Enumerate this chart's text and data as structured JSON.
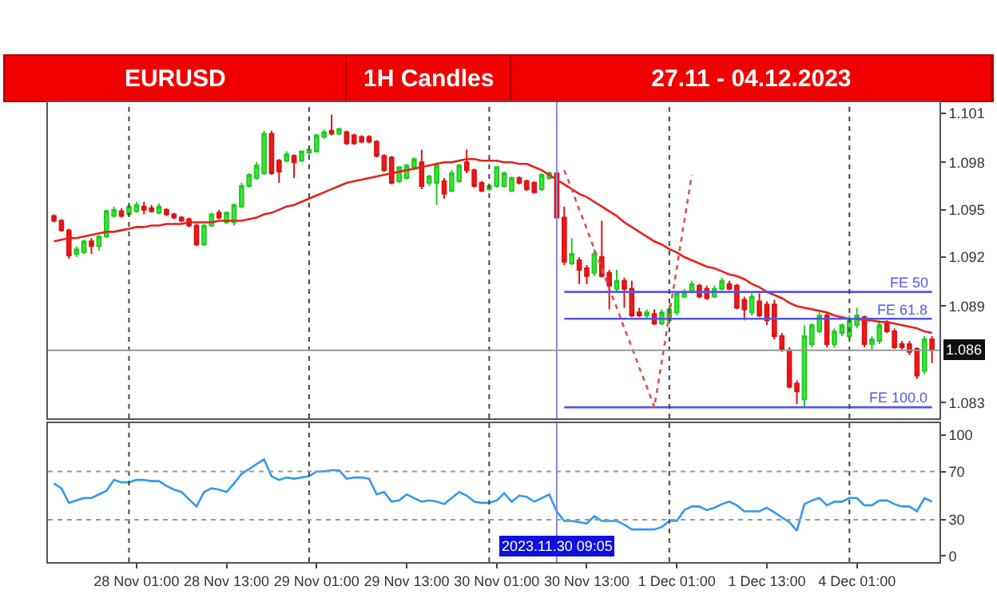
{
  "chart_data": [
    {
      "type": "candlestick",
      "title": "EURUSD",
      "subtitle": "1H Candles",
      "annotations": [
        "27.11 - 04.12.2023"
      ],
      "tick_labels": "y",
      "grid": "x",
      "categories": [
        null,
        null,
        null,
        null,
        null,
        null,
        null,
        null,
        null,
        null,
        null,
        null,
        null,
        null,
        null,
        null,
        null,
        null,
        null,
        null,
        null,
        null,
        null,
        null,
        null,
        null,
        null,
        null,
        null,
        null,
        null,
        null,
        null,
        null,
        null,
        null,
        null,
        null,
        null,
        null,
        null,
        null,
        null,
        null,
        null,
        null,
        null,
        null,
        null,
        null,
        null,
        null,
        null,
        null,
        null,
        null,
        null,
        null,
        null,
        null,
        null,
        null,
        null,
        null,
        null,
        null,
        null,
        null,
        null,
        null,
        null,
        null,
        null,
        null,
        null,
        null,
        null,
        null,
        null,
        null,
        null,
        null,
        null,
        null,
        null,
        null,
        null,
        null,
        null,
        null,
        null,
        null,
        null,
        null,
        null,
        null,
        null,
        null,
        null,
        null,
        null,
        null,
        null,
        null,
        null,
        null,
        null,
        null,
        null,
        null,
        null,
        null,
        null,
        null,
        null,
        null,
        null,
        null
      ],
      "ohlc": [
        [
          1.0946,
          1.0947,
          1.0942,
          1.0943
        ],
        [
          1.0943,
          1.0944,
          1.0936,
          1.0937
        ],
        [
          1.0937,
          1.0938,
          1.0919,
          1.0921
        ],
        [
          1.0922,
          1.0927,
          1.092,
          1.0925
        ],
        [
          1.0923,
          1.0931,
          1.0922,
          1.093
        ],
        [
          1.093,
          1.0932,
          1.0922,
          1.0927
        ],
        [
          1.0927,
          1.0934,
          1.0924,
          1.0933
        ],
        [
          1.0933,
          1.095,
          1.0932,
          1.0949
        ],
        [
          1.0946,
          1.0952,
          1.0945,
          1.095
        ],
        [
          1.0949,
          1.0951,
          1.0945,
          1.0946
        ],
        [
          1.0947,
          1.0953,
          1.0946,
          1.0952
        ],
        [
          1.0949,
          1.0955,
          1.0948,
          1.0953
        ],
        [
          1.0952,
          1.0955,
          1.0947,
          1.095
        ],
        [
          1.0951,
          1.0953,
          1.0948,
          1.0949
        ],
        [
          1.0948,
          1.0954,
          1.0947,
          1.0952
        ],
        [
          1.095,
          1.0951,
          1.0946,
          1.0947
        ],
        [
          1.0947,
          1.0948,
          1.0944,
          1.0945
        ],
        [
          1.0945,
          1.0946,
          1.0942,
          1.0943
        ],
        [
          1.0944,
          1.0945,
          1.0939,
          1.094
        ],
        [
          1.094,
          1.0941,
          1.0927,
          1.0928
        ],
        [
          1.0928,
          1.0941,
          1.0927,
          1.094
        ],
        [
          1.094,
          1.0948,
          1.0939,
          1.0947
        ],
        [
          1.0948,
          1.095,
          1.0944,
          1.0945
        ],
        [
          1.0942,
          1.0949,
          1.0941,
          1.0948
        ],
        [
          1.0942,
          1.0954,
          1.094,
          1.0953
        ],
        [
          1.0952,
          1.0967,
          1.0951,
          1.0965
        ],
        [
          1.0965,
          1.0973,
          1.0964,
          1.0972
        ],
        [
          1.097,
          1.098,
          1.0969,
          1.0978
        ],
        [
          1.0973,
          1.1,
          1.0972,
          1.0998
        ],
        [
          1.0998,
          1.1,
          1.0972,
          1.0973
        ],
        [
          1.0981,
          1.0982,
          1.0967,
          1.0974
        ],
        [
          1.0981,
          1.0987,
          1.098,
          1.0985
        ],
        [
          1.0984,
          1.0985,
          1.097,
          1.098
        ],
        [
          1.0981,
          1.0987,
          1.098,
          1.0987
        ],
        [
          1.0986,
          1.0989,
          1.0985,
          1.0988
        ],
        [
          1.0987,
          1.0998,
          1.0986,
          1.0997
        ],
        [
          1.0996,
          1.1001,
          1.0995,
          1.0999
        ],
        [
          1.1,
          1.101,
          1.0997,
          1.0998
        ],
        [
          1.0998,
          1.1002,
          1.0997,
          1.1001
        ],
        [
          1.0999,
          1.1,
          1.0991,
          1.0992
        ],
        [
          1.0997,
          1.0998,
          1.0991,
          1.0992
        ],
        [
          1.0996,
          1.0997,
          1.0992,
          1.0993
        ],
        [
          1.0996,
          1.0997,
          1.0992,
          1.0993
        ],
        [
          1.0993,
          1.0994,
          1.0983,
          1.0984
        ],
        [
          1.0984,
          1.0985,
          1.0974,
          1.0975
        ],
        [
          1.0983,
          1.0984,
          1.0966,
          1.0967
        ],
        [
          1.0968,
          1.0977,
          1.0967,
          1.0977
        ],
        [
          1.097,
          1.0979,
          1.0969,
          1.0978
        ],
        [
          1.0977,
          1.0983,
          1.0975,
          1.0982
        ],
        [
          1.098,
          1.0988,
          1.0963,
          1.0965
        ],
        [
          1.0967,
          1.0972,
          1.0965,
          1.0971
        ],
        [
          1.0967,
          1.098,
          1.0953,
          1.0978
        ],
        [
          1.0968,
          1.097,
          1.0957,
          1.096
        ],
        [
          1.0962,
          1.0975,
          1.0961,
          1.0973
        ],
        [
          1.0968,
          1.0979,
          1.0967,
          1.0978
        ],
        [
          1.098,
          1.0988,
          1.0973,
          1.0975
        ],
        [
          1.0975,
          1.0976,
          1.0964,
          1.0965
        ],
        [
          1.0967,
          1.0968,
          1.0961,
          1.0962
        ],
        [
          1.0963,
          1.0966,
          1.0962,
          1.0965
        ],
        [
          1.0965,
          1.0977,
          1.0964,
          1.0977
        ],
        [
          1.0965,
          1.0974,
          1.0964,
          1.0973
        ],
        [
          1.0962,
          1.0971,
          1.0961,
          1.097
        ],
        [
          1.097,
          1.0971,
          1.0966,
          1.0967
        ],
        [
          1.0968,
          1.0969,
          1.0962,
          1.0963
        ],
        [
          1.0967,
          1.0968,
          1.096,
          1.0961
        ],
        [
          1.0963,
          1.0973,
          1.0962,
          1.0972
        ],
        [
          1.097,
          1.0974,
          1.0969,
          1.0973
        ],
        [
          1.0973,
          1.0974,
          1.0944,
          1.0945
        ],
        [
          1.0945,
          1.0952,
          1.0915,
          1.0917
        ],
        [
          1.0916,
          1.0932,
          1.0915,
          1.0922
        ],
        [
          1.0918,
          1.092,
          1.0903,
          1.0912
        ],
        [
          1.0913,
          1.0915,
          1.0903,
          1.0908
        ],
        [
          1.091,
          1.0925,
          1.0908,
          1.0922
        ],
        [
          1.092,
          1.0943,
          1.0907,
          1.0908
        ],
        [
          1.091,
          1.0912,
          1.0887,
          1.0902
        ],
        [
          1.09,
          1.0912,
          1.0898,
          1.0905
        ],
        [
          1.0905,
          1.0907,
          1.0888,
          1.09
        ],
        [
          1.09,
          1.0905,
          1.0882,
          1.0883
        ],
        [
          1.0885,
          1.0888,
          1.0882,
          1.0883
        ],
        [
          1.0883,
          1.0887,
          1.0881,
          1.0885
        ],
        [
          1.0884,
          1.0887,
          1.0877,
          1.0878
        ],
        [
          1.0878,
          1.0887,
          1.0877,
          1.0885
        ],
        [
          1.088,
          1.089,
          1.0878,
          1.0887
        ],
        [
          1.0885,
          1.0898,
          1.0883,
          1.0897
        ],
        [
          1.0895,
          1.09,
          1.0894,
          1.0898
        ],
        [
          1.0898,
          1.0905,
          1.0897,
          1.0903
        ],
        [
          1.0902,
          1.0903,
          1.0894,
          1.0895
        ],
        [
          1.09,
          1.0902,
          1.0893,
          1.0894
        ],
        [
          1.0895,
          1.0902,
          1.0894,
          1.09
        ],
        [
          1.09,
          1.0907,
          1.0899,
          1.0905
        ],
        [
          1.0903,
          1.0905,
          1.0899,
          1.09
        ],
        [
          1.0902,
          1.0903,
          1.0887,
          1.0888
        ],
        [
          1.0893,
          1.0895,
          1.088,
          1.0887
        ],
        [
          1.0885,
          1.0897,
          1.0883,
          1.0895
        ],
        [
          1.0892,
          1.0897,
          1.0882,
          1.0883
        ],
        [
          1.089,
          1.0892,
          1.0877,
          1.088
        ],
        [
          1.089,
          1.0893,
          1.0868,
          1.087
        ],
        [
          1.087,
          1.0872,
          1.086,
          1.0862
        ],
        [
          1.0861,
          1.0863,
          1.0837,
          1.0838
        ],
        [
          1.084,
          1.0842,
          1.0827,
          1.0835
        ],
        [
          1.083,
          1.0877,
          1.0825,
          1.087
        ],
        [
          1.0865,
          1.0878,
          1.0863,
          1.0877
        ],
        [
          1.0873,
          1.0885,
          1.0872,
          1.0883
        ],
        [
          1.0883,
          1.0885,
          1.0863,
          1.0865
        ],
        [
          1.0865,
          1.0875,
          1.0863,
          1.0873
        ],
        [
          1.0872,
          1.0878,
          1.087,
          1.0877
        ],
        [
          1.087,
          1.0883,
          1.0868,
          1.088
        ],
        [
          1.0877,
          1.0888,
          1.0875,
          1.0883
        ],
        [
          1.0882,
          1.0883,
          1.0863,
          1.0865
        ],
        [
          1.0865,
          1.087,
          1.0861,
          1.0868
        ],
        [
          1.0867,
          1.088,
          1.0865,
          1.0877
        ],
        [
          1.0878,
          1.088,
          1.0872,
          1.0873
        ],
        [
          1.0873,
          1.0875,
          1.0862,
          1.0863
        ],
        [
          1.0865,
          1.0867,
          1.0861,
          1.0863
        ],
        [
          1.0865,
          1.0867,
          1.0858,
          1.086
        ],
        [
          1.0862,
          1.0863,
          1.0843,
          1.0845
        ],
        [
          1.0848,
          1.087,
          1.0846,
          1.0868
        ],
        [
          1.0868,
          1.087,
          1.0853,
          1.0861
        ]
      ],
      "series": [
        {
          "type": "line",
          "color": "#e8201c",
          "values": [
            1.093,
            1.0931,
            1.0932,
            1.0932,
            1.0933,
            1.0934,
            1.0935,
            1.0936,
            1.0936,
            1.0937,
            1.0938,
            1.0939,
            1.0939,
            1.094,
            1.094,
            1.0941,
            1.0941,
            1.0941,
            1.0942,
            1.0942,
            1.0942,
            1.0942,
            1.0943,
            1.0943,
            1.0943,
            1.0943,
            1.0944,
            1.0945,
            1.0947,
            1.0948,
            1.095,
            1.0952,
            1.0953,
            1.0955,
            1.0957,
            1.0959,
            1.0961,
            1.0963,
            1.0965,
            1.0967,
            1.0968,
            1.0969,
            1.097,
            1.0971,
            1.0972,
            1.0973,
            1.0974,
            1.0975,
            1.0976,
            1.0977,
            1.0978,
            1.0979,
            1.098,
            1.098,
            1.0981,
            1.0982,
            1.0982,
            1.0981,
            1.0981,
            1.0981,
            1.098,
            1.098,
            1.0979,
            1.0979,
            1.0977,
            1.0975,
            1.0972,
            1.0969,
            1.0966,
            1.0963,
            1.096,
            1.0958,
            1.0955,
            1.0952,
            1.0949,
            1.0946,
            1.0942,
            1.0939,
            1.0936,
            1.0933,
            1.093,
            1.0928,
            1.0925,
            1.0923,
            1.092,
            1.0918,
            1.0916,
            1.0914,
            1.0913,
            1.0911,
            1.0909,
            1.0908,
            1.0906,
            1.0903,
            1.0901,
            1.0898,
            1.0896,
            1.0894,
            1.0891,
            1.0889,
            1.0888,
            1.0887,
            1.0886,
            1.0885,
            1.0883,
            1.0882,
            1.0881,
            1.0881,
            1.088,
            1.088,
            1.0879,
            1.0879,
            1.0878,
            1.0877,
            1.0876,
            1.0875,
            1.0873,
            1.0872
          ]
        },
        {
          "type": "line",
          "name": "FE 50",
          "color": "#5555ee",
          "values": [
            null,
            null,
            null,
            null,
            null,
            null,
            null,
            null,
            null,
            null,
            null,
            null,
            null,
            null,
            null,
            null,
            null,
            null,
            null,
            null,
            null,
            null,
            null,
            null,
            null,
            null,
            null,
            null,
            null,
            null,
            null,
            null,
            null,
            null,
            null,
            null,
            null,
            null,
            null,
            null,
            null,
            null,
            null,
            null,
            null,
            null,
            null,
            null,
            null,
            null,
            null,
            null,
            null,
            null,
            null,
            null,
            null,
            null,
            null,
            null,
            null,
            null,
            null,
            null,
            null,
            null,
            null,
            null,
            1.0898,
            1.0898,
            1.0898,
            1.0898,
            1.0898,
            1.0898,
            1.0898,
            1.0898,
            1.0898,
            1.0898,
            1.0898,
            1.0898,
            1.0898,
            1.0898,
            1.0898,
            1.0898,
            1.0898,
            1.0898,
            1.0898,
            1.0898,
            1.0898,
            1.0898,
            1.0898,
            1.0898,
            1.0898,
            1.0898,
            1.0898,
            1.0898,
            1.0898,
            1.0898,
            1.0898,
            1.0898,
            1.0898,
            1.0898,
            1.0898,
            1.0898,
            1.0898,
            1.0898,
            1.0898,
            1.0898,
            1.0898,
            1.0898,
            1.0898,
            1.0898,
            1.0898,
            1.0898,
            1.0898,
            1.0898,
            1.0898,
            1.0898
          ]
        },
        {
          "type": "line",
          "name": "FE 61.8",
          "color": "#5555ee",
          "values": [
            null,
            null,
            null,
            null,
            null,
            null,
            null,
            null,
            null,
            null,
            null,
            null,
            null,
            null,
            null,
            null,
            null,
            null,
            null,
            null,
            null,
            null,
            null,
            null,
            null,
            null,
            null,
            null,
            null,
            null,
            null,
            null,
            null,
            null,
            null,
            null,
            null,
            null,
            null,
            null,
            null,
            null,
            null,
            null,
            null,
            null,
            null,
            null,
            null,
            null,
            null,
            null,
            null,
            null,
            null,
            null,
            null,
            null,
            null,
            null,
            null,
            null,
            null,
            null,
            null,
            null,
            null,
            null,
            1.0881,
            1.0881,
            1.0881,
            1.0881,
            1.0881,
            1.0881,
            1.0881,
            1.0881,
            1.0881,
            1.0881,
            1.0881,
            1.0881,
            1.0881,
            1.0881,
            1.0881,
            1.0881,
            1.0881,
            1.0881,
            1.0881,
            1.0881,
            1.0881,
            1.0881,
            1.0881,
            1.0881,
            1.0881,
            1.0881,
            1.0881,
            1.0881,
            1.0881,
            1.0881,
            1.0881,
            1.0881,
            1.0881,
            1.0881,
            1.0881,
            1.0881,
            1.0881,
            1.0881,
            1.0881,
            1.0881,
            1.0881,
            1.0881,
            1.0881,
            1.0881,
            1.0881,
            1.0881,
            1.0881,
            1.0881,
            1.0881,
            1.0881
          ]
        },
        {
          "type": "line",
          "name": "FE 100.0",
          "color": "#5555ee",
          "values": [
            null,
            null,
            null,
            null,
            null,
            null,
            null,
            null,
            null,
            null,
            null,
            null,
            null,
            null,
            null,
            null,
            null,
            null,
            null,
            null,
            null,
            null,
            null,
            null,
            null,
            null,
            null,
            null,
            null,
            null,
            null,
            null,
            null,
            null,
            null,
            null,
            null,
            null,
            null,
            null,
            null,
            null,
            null,
            null,
            null,
            null,
            null,
            null,
            null,
            null,
            null,
            null,
            null,
            null,
            null,
            null,
            null,
            null,
            null,
            null,
            null,
            null,
            null,
            null,
            null,
            null,
            null,
            null,
            1.0825,
            1.0825,
            1.0825,
            1.0825,
            1.0825,
            1.0825,
            1.0825,
            1.0825,
            1.0825,
            1.0825,
            1.0825,
            1.0825,
            1.0825,
            1.0825,
            1.0825,
            1.0825,
            1.0825,
            1.0825,
            1.0825,
            1.0825,
            1.0825,
            1.0825,
            1.0825,
            1.0825,
            1.0825,
            1.0825,
            1.0825,
            1.0825,
            1.0825,
            1.0825,
            1.0825,
            1.0825,
            1.0825,
            1.0825,
            1.0825,
            1.0825,
            1.0825,
            1.0825,
            1.0825,
            1.0825,
            1.0825,
            1.0825,
            1.0825,
            1.0825,
            1.0825,
            1.0825,
            1.0825,
            1.0825,
            1.0825,
            1.0825
          ]
        },
        {
          "type": "line",
          "color": "#e05050",
          "line_style": "dotted",
          "values": [
            null,
            null,
            null,
            null,
            null,
            null,
            null,
            null,
            null,
            null,
            null,
            null,
            null,
            null,
            null,
            null,
            null,
            null,
            null,
            null,
            null,
            null,
            null,
            null,
            null,
            null,
            null,
            null,
            null,
            null,
            null,
            null,
            null,
            null,
            null,
            null,
            null,
            null,
            null,
            null,
            null,
            null,
            null,
            null,
            null,
            null,
            null,
            null,
            null,
            null,
            null,
            null,
            null,
            null,
            null,
            null,
            null,
            null,
            null,
            null,
            null,
            null,
            null,
            null,
            null,
            null,
            null,
            null,
            1.0975,
            1.0963,
            1.095,
            1.0938,
            1.0925,
            1.0913,
            1.09,
            1.0888,
            1.0875,
            1.0863,
            1.085,
            1.0838,
            1.0825,
            1.0854,
            1.0884,
            1.0913,
            1.0943,
            1.0972,
            null,
            null,
            null,
            null,
            null,
            null,
            null,
            null,
            null,
            null,
            null,
            null,
            null,
            null,
            null,
            null,
            null,
            null,
            null,
            null,
            null,
            null,
            null,
            null,
            null,
            null,
            null,
            null,
            null,
            null,
            null,
            null
          ]
        }
      ],
      "ylim": [
        1.0818,
        1.1018
      ],
      "yticks": [
        {
          "value": 1.1011,
          "label": "1.101"
        },
        {
          "value": 1.098,
          "label": "1.098"
        },
        {
          "value": 1.095,
          "label": "1.095"
        },
        {
          "value": 1.092,
          "label": "1.092"
        },
        {
          "value": 1.0889,
          "label": "1.089"
        },
        {
          "value": 1.0828,
          "label": "1.083"
        }
      ],
      "ref_lines": [
        {
          "axis": "y",
          "value": 1.0861,
          "label": "1.086",
          "color": "#999999",
          "line_style": "solid"
        }
      ]
    },
    {
      "type": "line",
      "grid": "x",
      "categories": [
        null,
        null,
        null,
        null,
        null,
        null,
        null,
        null,
        null,
        null,
        null,
        "28 Nov 01:00",
        null,
        null,
        null,
        null,
        null,
        null,
        null,
        null,
        null,
        null,
        null,
        "28 Nov 13:00",
        null,
        null,
        null,
        null,
        null,
        null,
        null,
        null,
        null,
        null,
        null,
        "29 Nov 01:00",
        null,
        null,
        null,
        null,
        null,
        null,
        null,
        null,
        null,
        null,
        null,
        "29 Nov 13:00",
        null,
        null,
        null,
        null,
        null,
        null,
        null,
        null,
        null,
        null,
        null,
        "30 Nov 01:00",
        null,
        null,
        null,
        null,
        null,
        null,
        null,
        null,
        null,
        null,
        null,
        "30 Nov 13:00",
        null,
        null,
        null,
        null,
        null,
        null,
        null,
        null,
        null,
        null,
        null,
        "1 Dec 01:00",
        null,
        null,
        null,
        null,
        null,
        null,
        null,
        null,
        null,
        null,
        null,
        "1 Dec 13:00",
        null,
        null,
        null,
        null,
        null,
        null,
        null,
        null,
        null,
        null,
        null,
        "4 Dec 01:00",
        null,
        null,
        null,
        null,
        null,
        null,
        null,
        null,
        null,
        null
      ],
      "series": [
        {
          "color": "#3399ee",
          "values": [
            60,
            56,
            44,
            46,
            48,
            48,
            51,
            54,
            63,
            61,
            61,
            63,
            63,
            62,
            62,
            58,
            55,
            53,
            47,
            41,
            53,
            56,
            55,
            53,
            60,
            68,
            72,
            76,
            80,
            66,
            63,
            65,
            64,
            65,
            66,
            70,
            70,
            71,
            71,
            64,
            65,
            65,
            64,
            51,
            53,
            45,
            46,
            51,
            48,
            45,
            46,
            45,
            43,
            48,
            53,
            50,
            45,
            44,
            44,
            46,
            52,
            45,
            50,
            49,
            45,
            48,
            51,
            37,
            29,
            29,
            28,
            27,
            33,
            29,
            29,
            29,
            26,
            22,
            22,
            22,
            22,
            24,
            29,
            29,
            38,
            41,
            41,
            38,
            40,
            43,
            45,
            42,
            37,
            37,
            37,
            40,
            36,
            32,
            28,
            21,
            43,
            46,
            48,
            42,
            45,
            45,
            48,
            48,
            42,
            42,
            46,
            46,
            43,
            41,
            41,
            37,
            48,
            45
          ]
        }
      ],
      "ylim": [
        -5,
        110
      ],
      "yticks": [
        0,
        30,
        70,
        100
      ],
      "ref_lines": [
        {
          "axis": "y",
          "value": 70,
          "color": "#999999",
          "line_style": "dotted"
        },
        {
          "axis": "y",
          "value": 30,
          "color": "#999999",
          "line_style": "dotted"
        }
      ],
      "annotations": [
        "2023.11.30 09:05"
      ]
    }
  ]
}
